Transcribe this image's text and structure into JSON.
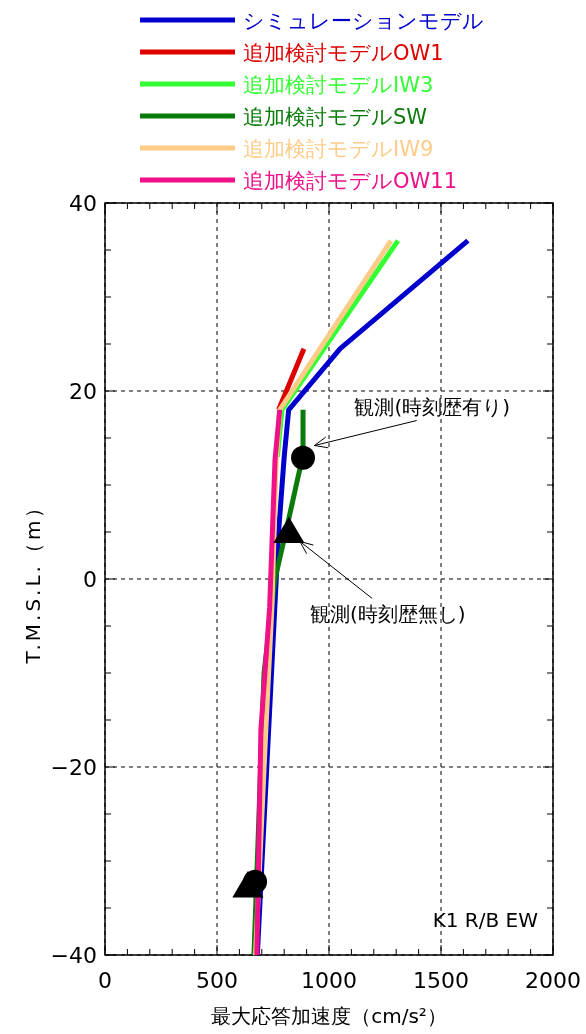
{
  "chart_data": {
    "type": "line",
    "xlabel": "最大応答加速度（cm/s²）",
    "ylabel": "T.M.S.L.（m）",
    "xlim": [
      0,
      2000
    ],
    "xticks": [
      0,
      500,
      1000,
      1500,
      2000
    ],
    "ylim": [
      -40,
      40
    ],
    "yticks": [
      -40,
      -20,
      0,
      20,
      40
    ],
    "grid": true,
    "legend": "top",
    "line_style": "solid",
    "marker": "none",
    "series": [
      {
        "name": "シミュレーションモデル",
        "color": "#0000cc",
        "x": [
          680,
          775,
          800,
          820,
          1050,
          1620
        ],
        "values": [
          -40,
          5,
          13,
          18,
          24.5,
          36
        ]
      },
      {
        "name": "追加検討モデルOW1",
        "color": "#dd0000",
        "x": [
          775,
          888
        ],
        "values": [
          18,
          24.5
        ]
      },
      {
        "name": "追加検討モデルIW3",
        "color": "#33ff33",
        "x": [
          770,
          790,
          1308
        ],
        "values": [
          13,
          18,
          36
        ]
      },
      {
        "name": "追加検討モデルSW",
        "color": "#0a7a0a",
        "x": [
          665,
          710,
          759,
          812,
          866,
          884,
          884
        ],
        "values": [
          -40,
          -10,
          0,
          5.5,
          11.3,
          13,
          18
        ]
      },
      {
        "name": "追加検討モデルIW9",
        "color": "#ffcc88",
        "x": [
          672,
          718,
          745,
          765,
          780,
          1277
        ],
        "values": [
          -40,
          -16,
          -3,
          13,
          18,
          36
        ]
      },
      {
        "name": "追加検討モデルOW11",
        "color": "#ee1188",
        "x": [
          678,
          696,
          735,
          759,
          780
        ],
        "values": [
          -40,
          -16,
          -3,
          12.7,
          18
        ]
      },
      {
        "type": "scatter",
        "marker": "circle",
        "color": "#000000",
        "x": [
          884,
          670
        ],
        "values": [
          12.9,
          -32.2
        ]
      },
      {
        "type": "scatter",
        "marker": "triangle",
        "color": "#000000",
        "x": [
          821,
          638
        ],
        "values": [
          5.1,
          -32.6
        ]
      }
    ],
    "annotations": [
      {
        "text": "観測(時刻歴有り)",
        "x": 935,
        "y": 14.2
      },
      {
        "text": "観測(時刻歴無し)",
        "x": 870,
        "y": 4
      },
      "K1 R/B EW"
    ]
  }
}
